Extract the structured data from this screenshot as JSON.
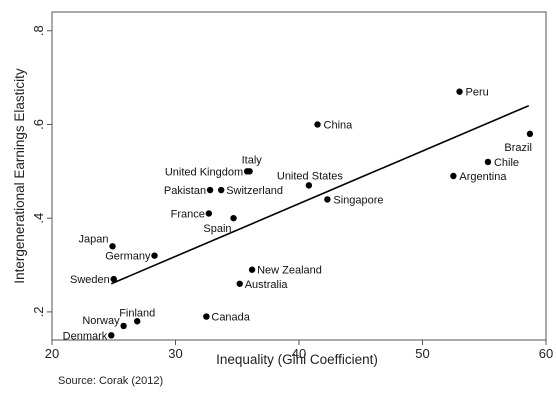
{
  "chart_data": {
    "type": "scatter",
    "title": "",
    "xlabel": "Inequality (Gini Coefficient)",
    "ylabel": "Intergenerational Earnings Elasticity",
    "source": "Source: Corak (2012)",
    "xlim": [
      20,
      60
    ],
    "ylim": [
      0.14,
      0.84
    ],
    "xticks": [
      20,
      30,
      40,
      50,
      60
    ],
    "xtick_labels": [
      "20",
      "30",
      "40",
      "50",
      "60"
    ],
    "yticks": [
      0.2,
      0.4,
      0.6,
      0.8
    ],
    "ytick_labels": [
      ".2",
      ".4",
      ".6",
      ".8"
    ],
    "grid": false,
    "points": [
      {
        "label": "Peru",
        "x": 53.0,
        "y": 0.67,
        "anchor": "start",
        "dx": 6,
        "dy": 4
      },
      {
        "label": "China",
        "x": 41.5,
        "y": 0.6,
        "anchor": "start",
        "dx": 6,
        "dy": 4
      },
      {
        "label": "Brazil",
        "x": 58.7,
        "y": 0.58,
        "anchor": "end",
        "dx": 2,
        "dy": 17
      },
      {
        "label": "Chile",
        "x": 55.3,
        "y": 0.52,
        "anchor": "start",
        "dx": 6,
        "dy": 4
      },
      {
        "label": "Argentina",
        "x": 52.5,
        "y": 0.49,
        "anchor": "start",
        "dx": 6,
        "dy": 4
      },
      {
        "label": "Italy",
        "x": 36.0,
        "y": 0.5,
        "anchor": "start",
        "dx": -8,
        "dy": -8
      },
      {
        "label": "United Kingdom",
        "x": 35.8,
        "y": 0.5,
        "anchor": "end",
        "dx": -4,
        "dy": 4
      },
      {
        "label": "United States",
        "x": 40.8,
        "y": 0.47,
        "anchor": "start",
        "dx": -32,
        "dy": -6
      },
      {
        "label": "Singapore",
        "x": 42.3,
        "y": 0.44,
        "anchor": "start",
        "dx": 6,
        "dy": 4
      },
      {
        "label": "Pakistan",
        "x": 32.8,
        "y": 0.46,
        "anchor": "end",
        "dx": -4,
        "dy": 4
      },
      {
        "label": "Switzerland",
        "x": 33.7,
        "y": 0.46,
        "anchor": "start",
        "dx": 5,
        "dy": 4
      },
      {
        "label": "France",
        "x": 32.7,
        "y": 0.41,
        "anchor": "end",
        "dx": -4,
        "dy": 4
      },
      {
        "label": "Spain",
        "x": 34.7,
        "y": 0.4,
        "anchor": "end",
        "dx": -2,
        "dy": 14
      },
      {
        "label": "Japan",
        "x": 24.9,
        "y": 0.34,
        "anchor": "end",
        "dx": -4,
        "dy": -4
      },
      {
        "label": "Germany",
        "x": 28.3,
        "y": 0.32,
        "anchor": "end",
        "dx": -4,
        "dy": 4
      },
      {
        "label": "New Zealand",
        "x": 36.2,
        "y": 0.29,
        "anchor": "start",
        "dx": 5,
        "dy": 4
      },
      {
        "label": "Australia",
        "x": 35.2,
        "y": 0.26,
        "anchor": "start",
        "dx": 5,
        "dy": 4
      },
      {
        "label": "Sweden",
        "x": 25.0,
        "y": 0.27,
        "anchor": "end",
        "dx": -4,
        "dy": 4
      },
      {
        "label": "Canada",
        "x": 32.5,
        "y": 0.19,
        "anchor": "start",
        "dx": 5,
        "dy": 4
      },
      {
        "label": "Finland",
        "x": 26.9,
        "y": 0.18,
        "anchor": "start",
        "dx": -18,
        "dy": -5
      },
      {
        "label": "Norway",
        "x": 25.8,
        "y": 0.17,
        "anchor": "end",
        "dx": -4,
        "dy": -2
      },
      {
        "label": "Denmark",
        "x": 24.8,
        "y": 0.15,
        "anchor": "end",
        "dx": -4,
        "dy": 4
      }
    ],
    "fit_line": {
      "x1": 24.8,
      "y1": 0.26,
      "x2": 58.6,
      "y2": 0.64
    }
  }
}
